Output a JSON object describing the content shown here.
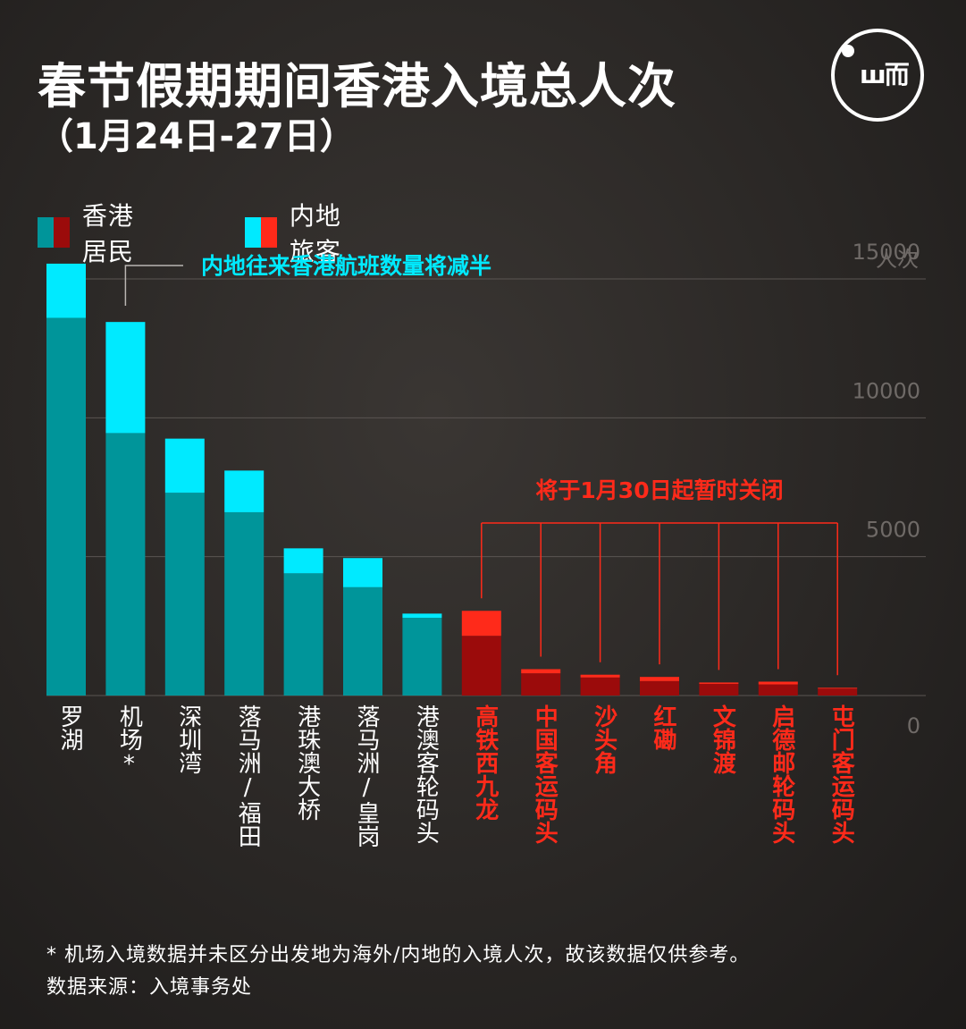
{
  "header": {
    "title": "春节假期期间香港入境总人次",
    "subtitle": "（1月24日-27日）"
  },
  "logo": {
    "name": "theinitium-logo",
    "mark": "ш而"
  },
  "legend": [
    {
      "label": "香港居民",
      "colors": [
        "#00959a",
        "#9b0b0b"
      ]
    },
    {
      "label": "内地旅客",
      "colors": [
        "#00eaff",
        "#ff2a1a"
      ]
    }
  ],
  "colors": {
    "resident_open": "#00959a",
    "visitor_open": "#00eaff",
    "resident_closing": "#9b0b0b",
    "visitor_closing": "#ff2a1a",
    "grid": "#5a5552",
    "axis_text": "#6f6a67"
  },
  "annotations": {
    "airport": "内地往来香港航班数量将减半",
    "closing": "将于1月30日起暂时关闭"
  },
  "chart_data": {
    "type": "bar",
    "stacked": true,
    "ylabel": "人次",
    "ylim": [
      0,
      15000
    ],
    "yticks": [
      0,
      5000,
      10000,
      15000
    ],
    "ytick_labels": [
      "0",
      "5000",
      "10000",
      "15000"
    ],
    "grid": true,
    "categories": [
      "罗湖",
      "机场*",
      "深圳湾",
      "落马洲/福田",
      "港珠澳大桥",
      "落马洲/皇岗",
      "港澳客轮码头",
      "高铁西九龙",
      "中国客运码头",
      "沙头角",
      "红磡",
      "文锦渡",
      "启德邮轮码头",
      "屯门客运码头"
    ],
    "closing_from_index": 7,
    "series": [
      {
        "name": "香港居民",
        "values": [
          13600,
          9450,
          7300,
          6600,
          4400,
          3900,
          2800,
          2150,
          800,
          650,
          520,
          420,
          400,
          250
        ]
      },
      {
        "name": "内地旅客",
        "values": [
          1950,
          4000,
          1950,
          1500,
          900,
          1050,
          150,
          900,
          150,
          100,
          150,
          50,
          100,
          30
        ]
      }
    ]
  },
  "footnotes": {
    "note": "* 机场入境数据并未区分出发地为海外/内地的入境人次，故该数据仅供参考。",
    "source": "数据来源：入境事务处"
  }
}
